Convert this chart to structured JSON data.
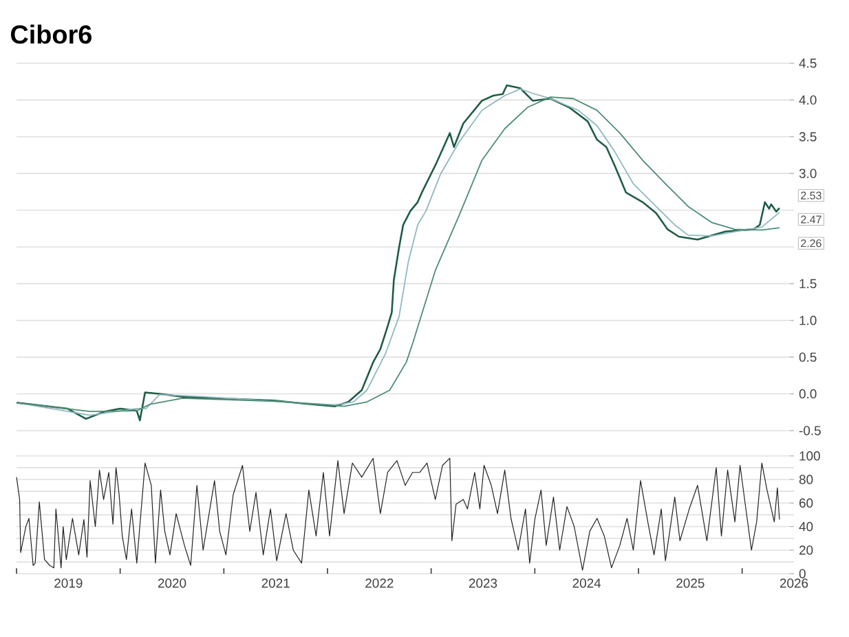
{
  "chart_data": [
    {
      "type": "line",
      "title": "Cibor6",
      "xlim": [
        2019,
        2026.5
      ],
      "ylim": [
        -0.5,
        4.5
      ],
      "grid": "y",
      "tick_labels": "y",
      "yticks": [
        {
          "value": -0.5,
          "label": "-0.5"
        },
        {
          "value": 0,
          "label": "0.0"
        },
        {
          "value": 0.5,
          "label": "0.5"
        },
        {
          "value": 1,
          "label": "1.0"
        },
        {
          "value": 1.5,
          "label": "1.5"
        },
        {
          "value": 2,
          "label": null
        },
        {
          "value": 2.5,
          "label": null
        },
        {
          "value": 3,
          "label": "3.0"
        },
        {
          "value": 3.5,
          "label": "3.5"
        },
        {
          "value": 4,
          "label": "4.0"
        },
        {
          "value": 4.5,
          "label": "4.5"
        }
      ],
      "series": [
        {
          "color": "#1e5c46",
          "x": [
            2019.0,
            2019.49,
            2019.67,
            2019.85,
            2020.0,
            2020.16,
            2020.19,
            2020.24,
            2020.38,
            2020.6,
            2020.96,
            2021.49,
            2021.76,
            2022.07,
            2022.2,
            2022.33,
            2022.44,
            2022.51,
            2022.58,
            2022.62,
            2022.64,
            2022.69,
            2022.73,
            2022.8,
            2022.87,
            2022.91,
            2023.04,
            2023.18,
            2023.22,
            2023.31,
            2023.49,
            2023.6,
            2023.69,
            2023.73,
            2023.86,
            2023.98,
            2024.15,
            2024.33,
            2024.51,
            2024.6,
            2024.69,
            2024.77,
            2024.88,
            2025.04,
            2025.17,
            2025.28,
            2025.39,
            2025.57,
            2025.84,
            2026.11,
            2026.17,
            2026.22,
            2026.26,
            2026.28,
            2026.33,
            2026.36
          ],
          "values": [
            -0.12,
            -0.2,
            -0.34,
            -0.24,
            -0.2,
            -0.23,
            -0.36,
            0.02,
            0.0,
            -0.04,
            -0.06,
            -0.09,
            -0.13,
            -0.17,
            -0.11,
            0.05,
            0.43,
            0.61,
            0.92,
            1.11,
            1.55,
            1.99,
            2.3,
            2.49,
            2.61,
            2.74,
            3.11,
            3.55,
            3.36,
            3.68,
            3.99,
            4.06,
            4.08,
            4.2,
            4.16,
            3.99,
            4.02,
            3.9,
            3.71,
            3.46,
            3.36,
            3.11,
            2.74,
            2.61,
            2.46,
            2.24,
            2.14,
            2.1,
            2.21,
            2.24,
            2.3,
            2.61,
            2.52,
            2.58,
            2.48,
            2.53
          ]
        },
        {
          "color": "#8fb8c0",
          "x": [
            2019.0,
            2019.71,
            2020.16,
            2020.25,
            2020.38,
            2020.82,
            2021.49,
            2022.07,
            2022.25,
            2022.38,
            2022.56,
            2022.69,
            2022.78,
            2022.87,
            2022.95,
            2023.09,
            2023.27,
            2023.49,
            2023.71,
            2023.86,
            2023.98,
            2024.15,
            2024.42,
            2024.6,
            2024.77,
            2024.95,
            2025.17,
            2025.35,
            2025.48,
            2025.71,
            2026.02,
            2026.19,
            2026.36
          ],
          "values": [
            -0.12,
            -0.29,
            -0.2,
            -0.2,
            -0.01,
            -0.04,
            -0.1,
            -0.15,
            -0.11,
            0.05,
            0.55,
            1.05,
            1.8,
            2.3,
            2.49,
            2.99,
            3.43,
            3.86,
            4.06,
            4.15,
            4.09,
            4.02,
            3.86,
            3.65,
            3.3,
            2.86,
            2.55,
            2.3,
            2.16,
            2.15,
            2.23,
            2.27,
            2.47
          ]
        },
        {
          "color": "#4d8c73",
          "x": [
            2019.0,
            2019.71,
            2020.16,
            2020.29,
            2020.6,
            2021.49,
            2022.16,
            2022.38,
            2022.6,
            2022.76,
            2022.82,
            2023.04,
            2023.27,
            2023.49,
            2023.71,
            2023.93,
            2024.15,
            2024.37,
            2024.6,
            2024.82,
            2025.04,
            2025.26,
            2025.48,
            2025.71,
            2025.93,
            2026.19,
            2026.36
          ],
          "values": [
            -0.12,
            -0.24,
            -0.23,
            -0.14,
            -0.06,
            -0.1,
            -0.17,
            -0.11,
            0.05,
            0.43,
            0.68,
            1.68,
            2.43,
            3.18,
            3.61,
            3.9,
            4.04,
            4.02,
            3.86,
            3.55,
            3.18,
            2.86,
            2.55,
            2.33,
            2.24,
            2.23,
            2.26
          ]
        }
      ],
      "annotations": [
        "2.53",
        "2.47",
        "2.26"
      ]
    },
    {
      "type": "line",
      "xlim": [
        2019,
        2026.5
      ],
      "ylim": [
        0,
        100
      ],
      "grid": "y",
      "xticks": [
        {
          "value": 2019,
          "label": null
        },
        {
          "value": 2020,
          "label": null
        },
        {
          "value": 2021,
          "label": null
        },
        {
          "value": 2022,
          "label": null
        },
        {
          "value": 2023,
          "label": null
        },
        {
          "value": 2024,
          "label": null
        },
        {
          "value": 2025,
          "label": null
        },
        {
          "value": 2026,
          "label": null
        },
        {
          "value": 2019.5,
          "label": "2019"
        },
        {
          "value": 2020.5,
          "label": "2020"
        },
        {
          "value": 2021.5,
          "label": "2021"
        },
        {
          "value": 2022.5,
          "label": "2022"
        },
        {
          "value": 2023.5,
          "label": "2023"
        },
        {
          "value": 2024.5,
          "label": "2024"
        },
        {
          "value": 2025.5,
          "label": "2025"
        },
        {
          "value": 2026.5,
          "label": "2026"
        }
      ],
      "yticks": [
        0,
        {
          "value": 10,
          "label": null
        },
        20,
        {
          "value": 30,
          "label": null
        },
        40,
        {
          "value": 50,
          "label": null
        },
        60,
        {
          "value": 70,
          "label": null
        },
        80,
        {
          "value": 90,
          "label": null
        },
        100
      ],
      "series": [
        {
          "color": "#222222",
          "x": [
            2019.0,
            2019.03,
            2019.04,
            2019.09,
            2019.12,
            2019.16,
            2019.18,
            2019.22,
            2019.27,
            2019.32,
            2019.36,
            2019.38,
            2019.43,
            2019.45,
            2019.48,
            2019.54,
            2019.6,
            2019.65,
            2019.68,
            2019.71,
            2019.76,
            2019.8,
            2019.84,
            2019.89,
            2019.93,
            2019.96,
            2019.99,
            2020.02,
            2020.06,
            2020.11,
            2020.16,
            2020.24,
            2020.3,
            2020.34,
            2020.39,
            2020.43,
            2020.48,
            2020.54,
            2020.62,
            2020.68,
            2020.74,
            2020.8,
            2020.91,
            2020.96,
            2021.02,
            2021.09,
            2021.18,
            2021.25,
            2021.31,
            2021.38,
            2021.45,
            2021.51,
            2021.6,
            2021.67,
            2021.75,
            2021.82,
            2021.89,
            2021.96,
            2022.02,
            2022.1,
            2022.16,
            2022.24,
            2022.33,
            2022.44,
            2022.51,
            2022.58,
            2022.67,
            2022.75,
            2022.82,
            2022.89,
            2022.96,
            2023.04,
            2023.11,
            2023.18,
            2023.2,
            2023.24,
            2023.31,
            2023.35,
            2023.42,
            2023.47,
            2023.51,
            2023.58,
            2023.64,
            2023.71,
            2023.77,
            2023.84,
            2023.91,
            2023.95,
            2024.0,
            2024.06,
            2024.11,
            2024.18,
            2024.24,
            2024.31,
            2024.38,
            2024.46,
            2024.53,
            2024.6,
            2024.67,
            2024.74,
            2024.82,
            2024.89,
            2024.95,
            2025.02,
            2025.09,
            2025.15,
            2025.22,
            2025.26,
            2025.35,
            2025.4,
            2025.49,
            2025.57,
            2025.66,
            2025.75,
            2025.8,
            2025.86,
            2025.93,
            2025.98,
            2026.03,
            2026.09,
            2026.14,
            2026.19,
            2026.24,
            2026.31,
            2026.34,
            2026.36
          ],
          "values": [
            82,
            63,
            18,
            40,
            47,
            7,
            9,
            61,
            12,
            7,
            5,
            55,
            5,
            40,
            12,
            47,
            16,
            46,
            14,
            79,
            40,
            88,
            63,
            86,
            42,
            90,
            67,
            32,
            12,
            55,
            9,
            94,
            75,
            9,
            71,
            36,
            16,
            51,
            24,
            7,
            75,
            20,
            79,
            36,
            16,
            67,
            92,
            36,
            69,
            16,
            55,
            11,
            51,
            20,
            9,
            71,
            32,
            86,
            32,
            96,
            51,
            94,
            82,
            98,
            51,
            86,
            96,
            75,
            86,
            86,
            94,
            63,
            92,
            98,
            28,
            59,
            63,
            55,
            86,
            55,
            92,
            75,
            51,
            88,
            47,
            20,
            55,
            9,
            46,
            71,
            24,
            65,
            20,
            57,
            40,
            3,
            36,
            47,
            32,
            5,
            24,
            47,
            20,
            79,
            44,
            16,
            55,
            11,
            65,
            28,
            55,
            75,
            28,
            90,
            32,
            88,
            44,
            92,
            59,
            20,
            44,
            94,
            71,
            44,
            73,
            46
          ]
        }
      ]
    }
  ]
}
